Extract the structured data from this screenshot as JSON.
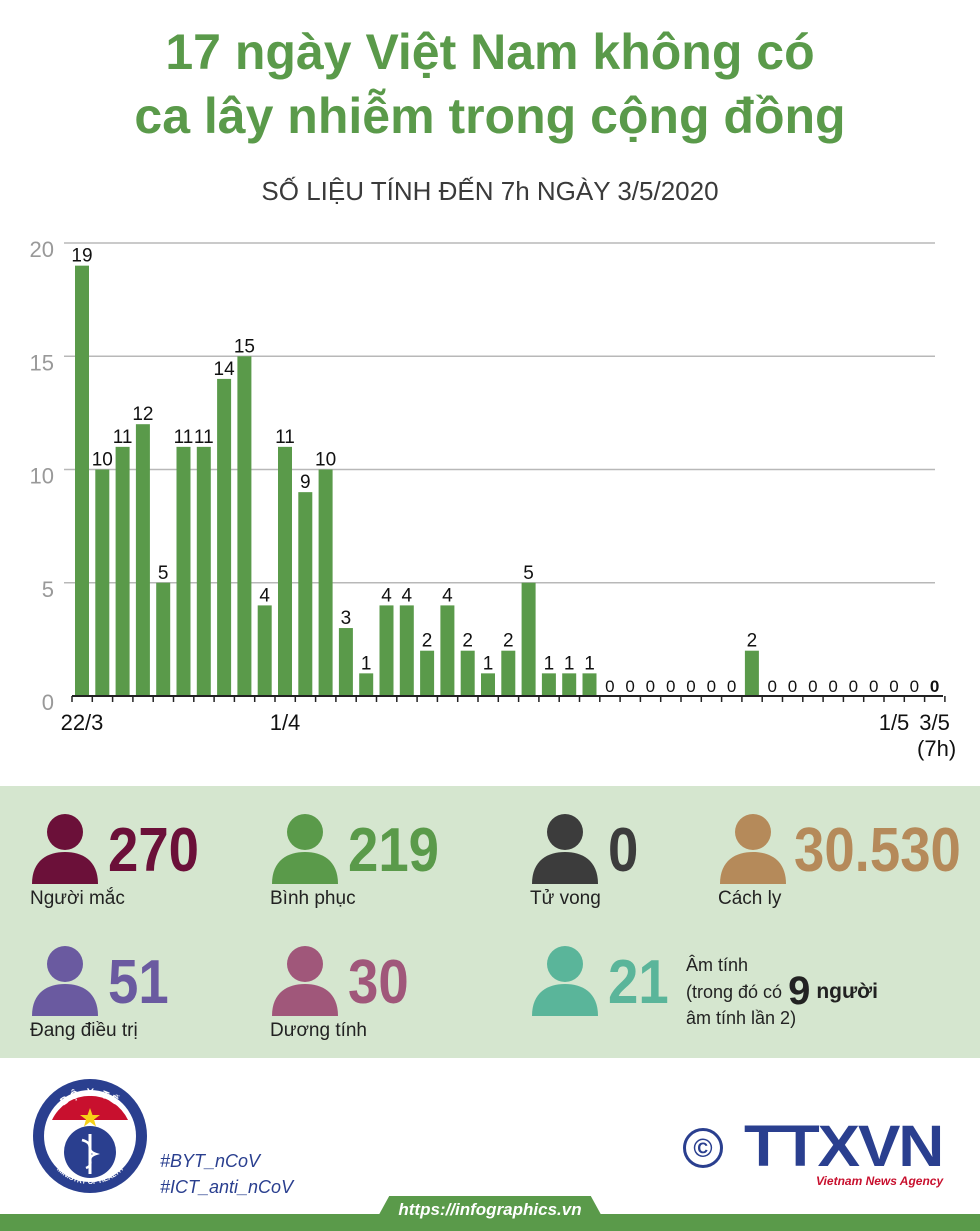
{
  "title_line1": "17 ngày Việt Nam không có",
  "title_line2": "ca lây nhiễm trong cộng đồng",
  "subtitle": "SỐ LIỆU TÍNH ĐẾN 7h NGÀY 3/5/2020",
  "colors": {
    "green": "#5a9a4a",
    "grid": "#b8b8b8",
    "axis": "#222222"
  },
  "chart_data": {
    "type": "bar",
    "title": "",
    "xlabel": "",
    "ylabel": "",
    "ylim": [
      0,
      20
    ],
    "yticks": [
      0,
      5,
      10,
      15,
      20
    ],
    "x_tick_labels": [
      {
        "index": 0,
        "text": "22/3"
      },
      {
        "index": 10,
        "text": "1/4"
      },
      {
        "index": 40,
        "text": "1/5"
      },
      {
        "index": 42,
        "text": "3/5",
        "sub": "(7h)"
      }
    ],
    "values": [
      19,
      10,
      11,
      12,
      5,
      11,
      11,
      14,
      15,
      4,
      11,
      9,
      10,
      3,
      1,
      4,
      4,
      2,
      4,
      2,
      1,
      2,
      5,
      1,
      1,
      1,
      0,
      0,
      0,
      0,
      0,
      0,
      0,
      2,
      0,
      0,
      0,
      0,
      0,
      0,
      0,
      0,
      0
    ]
  },
  "stats": {
    "infected": {
      "value": "270",
      "label": "Người mắc",
      "color": "#6b1039"
    },
    "recovered": {
      "value": "219",
      "label": "Bình phục",
      "color": "#5a9a4a"
    },
    "deaths": {
      "value": "0",
      "label": "Tử vong",
      "color": "#3c3c3c"
    },
    "isolated": {
      "value": "30.530",
      "label": "Cách ly",
      "color": "#b58a5a"
    },
    "treating": {
      "value": "51",
      "label": "Đang điều trị",
      "color": "#6a5aa0"
    },
    "positive": {
      "value": "30",
      "label": "Dương tính",
      "color": "#a0577a"
    },
    "negative": {
      "value": "21",
      "color": "#5ab59a",
      "label_line1": "Âm tính",
      "label_pre": "(trong đó có",
      "label_count": "9",
      "label_post": "người",
      "label_line3": "âm tính lần 2)"
    }
  },
  "footer": {
    "tag1": "#BYT_nCoV",
    "tag2": "#ICT_anti_nCoV",
    "url": "https://infographics.vn",
    "copyright": "©",
    "brand": "TTXVN",
    "agency": "Vietnam News Agency",
    "logo_top": "BỘ Y TẾ",
    "logo_bottom": "MINISTRY OF HEALTH"
  }
}
